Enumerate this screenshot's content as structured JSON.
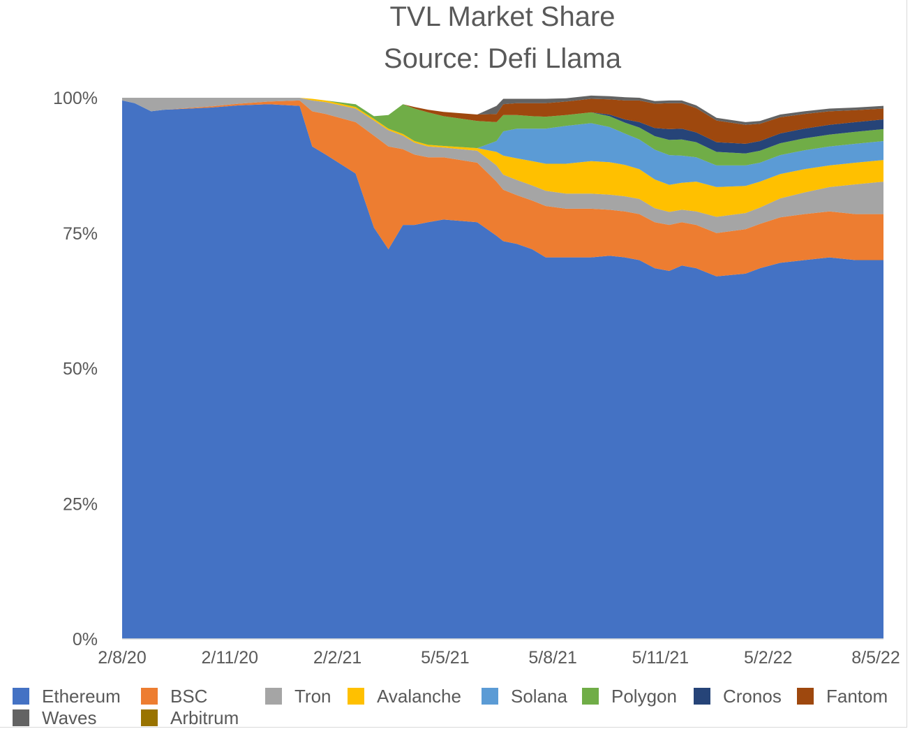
{
  "chart_data": {
    "type": "area",
    "stacked": true,
    "title": "TVL Market Share",
    "subtitle": "Source: Defi Llama",
    "y_unit": "percent",
    "ylim": [
      0,
      100
    ],
    "y_ticks": [
      "0%",
      "25%",
      "50%",
      "75%",
      "100%"
    ],
    "x_tick_labels": [
      "2/8/20",
      "2/11/20",
      "2/2/21",
      "5/5/21",
      "5/8/21",
      "5/11/21",
      "5/2/22",
      "8/5/22"
    ],
    "x": [
      "2020-08-02",
      "2020-08-15",
      "2020-09-01",
      "2020-09-15",
      "2020-11-02",
      "2020-12-01",
      "2021-01-01",
      "2021-02-02",
      "2021-02-15",
      "2021-03-01",
      "2021-04-01",
      "2021-04-20",
      "2021-05-05",
      "2021-05-20",
      "2021-06-01",
      "2021-06-15",
      "2021-07-01",
      "2021-08-05",
      "2021-08-25",
      "2021-09-01",
      "2021-09-15",
      "2021-10-01",
      "2021-10-15",
      "2021-11-05",
      "2021-12-01",
      "2021-12-20",
      "2022-01-05",
      "2022-01-20",
      "2022-02-05",
      "2022-02-20",
      "2022-03-05",
      "2022-03-20",
      "2022-04-10",
      "2022-05-10",
      "2022-05-25",
      "2022-06-15",
      "2022-07-10",
      "2022-08-05",
      "2022-09-01",
      "2022-09-30"
    ],
    "series": [
      {
        "name": "Ethereum",
        "color": "#4472c4",
        "values": [
          99.5,
          99.0,
          97.5,
          97.8,
          98.2,
          98.6,
          98.8,
          98.5,
          91.0,
          89.5,
          86.0,
          76.0,
          72.0,
          76.5,
          76.5,
          77.0,
          77.5,
          77.0,
          74.5,
          73.5,
          73.0,
          72.0,
          70.5,
          70.5,
          70.5,
          70.8,
          70.5,
          70.0,
          68.5,
          68.0,
          69.0,
          68.5,
          67.0,
          67.5,
          68.5,
          69.5,
          70.0,
          70.5,
          70.0,
          70.0
        ]
      },
      {
        "name": "BSC",
        "color": "#ed7d31",
        "values": [
          0,
          0,
          0,
          0,
          0.2,
          0.3,
          0.5,
          1.0,
          6.5,
          7.5,
          9.5,
          17.0,
          19.0,
          14.0,
          13.0,
          12.0,
          11.5,
          11.0,
          10.0,
          9.5,
          9.0,
          9.0,
          9.5,
          9.0,
          9.0,
          8.5,
          8.5,
          8.5,
          8.5,
          8.5,
          8.0,
          8.0,
          8.0,
          8.2,
          8.2,
          8.4,
          8.5,
          8.5,
          8.5,
          8.5
        ]
      },
      {
        "name": "Tron",
        "color": "#a5a5a5",
        "values": [
          0.5,
          1.0,
          2.5,
          2.2,
          1.6,
          1.1,
          0.7,
          0.5,
          2.0,
          2.2,
          2.5,
          2.8,
          3.0,
          2.5,
          2.2,
          2.0,
          1.8,
          2.2,
          3.0,
          2.8,
          2.8,
          2.8,
          2.8,
          2.8,
          2.8,
          2.8,
          2.8,
          2.8,
          2.6,
          2.4,
          2.3,
          2.5,
          3.0,
          3.0,
          3.0,
          3.5,
          4.0,
          4.5,
          5.5,
          6.0
        ]
      },
      {
        "name": "Avalanche",
        "color": "#ffc000",
        "values": [
          0,
          0,
          0,
          0,
          0,
          0,
          0,
          0,
          0.3,
          0.3,
          0.3,
          0.3,
          0.3,
          0.3,
          0.3,
          0.3,
          0.3,
          0.5,
          2.5,
          3.5,
          4.0,
          4.5,
          5.0,
          5.5,
          6.0,
          6.0,
          5.8,
          5.5,
          5.3,
          5.0,
          5.0,
          5.5,
          5.5,
          5.0,
          4.8,
          4.5,
          4.3,
          4.0,
          4.0,
          4.0
        ]
      },
      {
        "name": "Solana",
        "color": "#5b9bd5",
        "values": [
          0,
          0,
          0,
          0,
          0,
          0,
          0,
          0,
          0,
          0,
          0,
          0,
          0,
          0,
          0,
          0,
          0,
          0,
          2.0,
          4.5,
          5.5,
          6.0,
          6.5,
          7.0,
          7.0,
          6.5,
          5.8,
          5.5,
          5.5,
          5.5,
          5.0,
          4.5,
          4.0,
          3.8,
          3.5,
          3.5,
          3.5,
          3.5,
          3.5,
          3.5
        ]
      },
      {
        "name": "Polygon",
        "color": "#70ad47",
        "values": [
          0,
          0,
          0,
          0,
          0,
          0,
          0,
          0,
          0,
          0,
          0.5,
          0.5,
          2.5,
          5.5,
          6.0,
          6.0,
          5.5,
          5.0,
          3.5,
          3.0,
          2.5,
          2.3,
          2.2,
          2.0,
          2.0,
          2.0,
          2.0,
          2.2,
          2.5,
          2.8,
          3.0,
          2.8,
          2.5,
          2.2,
          2.2,
          2.2,
          2.2,
          2.2,
          2.2,
          2.2
        ]
      },
      {
        "name": "Cronos",
        "color": "#264478",
        "values": [
          0,
          0,
          0,
          0,
          0,
          0,
          0,
          0,
          0,
          0,
          0,
          0,
          0,
          0,
          0,
          0,
          0,
          0,
          0,
          0,
          0,
          0,
          0,
          0,
          0,
          0.3,
          0.6,
          1.0,
          1.5,
          2.0,
          2.0,
          1.8,
          1.8,
          1.8,
          1.8,
          1.8,
          1.8,
          1.8,
          1.8,
          1.8
        ]
      },
      {
        "name": "Fantom",
        "color": "#9e480e",
        "values": [
          0,
          0,
          0,
          0,
          0,
          0,
          0,
          0,
          0,
          0,
          0,
          0,
          0,
          0,
          0.3,
          0.5,
          0.8,
          1.2,
          1.5,
          2.0,
          2.2,
          2.4,
          2.5,
          2.5,
          2.5,
          2.8,
          3.5,
          4.0,
          4.5,
          4.8,
          4.7,
          4.5,
          4.0,
          3.5,
          3.2,
          3.0,
          2.7,
          2.5,
          2.2,
          2.0
        ]
      },
      {
        "name": "Waves",
        "color": "#636363",
        "values": [
          0,
          0,
          0,
          0,
          0,
          0,
          0,
          0,
          0,
          0,
          0,
          0,
          0,
          0,
          0,
          0,
          0,
          0,
          1.5,
          1.0,
          0.8,
          0.8,
          0.8,
          0.6,
          0.6,
          0.6,
          0.6,
          0.5,
          0.5,
          0.5,
          0.5,
          0.5,
          0.5,
          0.5,
          0.5,
          0.5,
          0.5,
          0.5,
          0.5,
          0.5
        ]
      },
      {
        "name": "Arbitrum",
        "color": "#997300",
        "values": [
          0,
          0,
          0,
          0,
          0,
          0,
          0,
          0,
          0,
          0,
          0,
          0,
          0,
          0,
          0,
          0,
          0,
          0,
          0,
          0,
          0,
          0,
          0,
          0,
          0,
          0,
          0,
          0,
          0,
          0,
          0,
          0,
          0,
          0,
          0,
          0,
          0,
          0,
          0,
          0
        ]
      }
    ]
  }
}
